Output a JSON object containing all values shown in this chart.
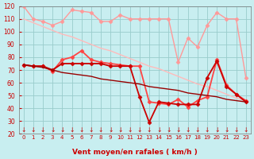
{
  "x": [
    0,
    1,
    2,
    3,
    4,
    5,
    6,
    7,
    8,
    9,
    10,
    11,
    12,
    13,
    14,
    15,
    16,
    17,
    18,
    19,
    20,
    21,
    22,
    23
  ],
  "series": [
    {
      "label": "rafales_with_markers",
      "color": "#ff9999",
      "linewidth": 1.0,
      "marker": "D",
      "markersize": 2.5,
      "values": [
        120,
        110,
        108,
        105,
        108,
        117,
        116,
        115,
        108,
        108,
        113,
        110,
        110,
        110,
        110,
        110,
        76,
        95,
        88,
        105,
        115,
        110,
        110,
        64
      ]
    },
    {
      "label": "rafales_straight",
      "color": "#ffbbbb",
      "linewidth": 1.0,
      "marker": null,
      "markersize": 0,
      "values": [
        110,
        107,
        104,
        101,
        98,
        96,
        93,
        90,
        87,
        85,
        82,
        79,
        76,
        73,
        71,
        68,
        65,
        62,
        59,
        57,
        54,
        51,
        48,
        46
      ]
    },
    {
      "label": "vent_upper",
      "color": "#ff4444",
      "linewidth": 1.3,
      "marker": "D",
      "markersize": 2.5,
      "values": [
        74,
        73,
        73,
        69,
        78,
        80,
        85,
        78,
        76,
        75,
        74,
        73,
        73,
        45,
        44,
        43,
        47,
        41,
        46,
        49,
        78,
        58,
        51,
        46
      ]
    },
    {
      "label": "vent_lower",
      "color": "#cc0000",
      "linewidth": 1.3,
      "marker": "D",
      "markersize": 2.5,
      "values": [
        74,
        73,
        73,
        70,
        75,
        75,
        75,
        75,
        75,
        73,
        73,
        73,
        49,
        29,
        45,
        44,
        43,
        43,
        43,
        64,
        77,
        57,
        51,
        45
      ]
    },
    {
      "label": "vent_straight",
      "color": "#990000",
      "linewidth": 1.0,
      "marker": null,
      "markersize": 0,
      "values": [
        74,
        73,
        72,
        70,
        68,
        67,
        66,
        65,
        63,
        62,
        61,
        60,
        59,
        57,
        56,
        55,
        54,
        52,
        51,
        50,
        49,
        47,
        46,
        45
      ]
    }
  ],
  "xlabel": "Vent moyen/en rafales ( km/h )",
  "xlim": [
    -0.5,
    23.5
  ],
  "ylim": [
    20,
    120
  ],
  "yticks": [
    20,
    30,
    40,
    50,
    60,
    70,
    80,
    90,
    100,
    110,
    120
  ],
  "xticks": [
    0,
    1,
    2,
    3,
    4,
    5,
    6,
    7,
    8,
    9,
    10,
    11,
    12,
    13,
    14,
    15,
    16,
    17,
    18,
    19,
    20,
    21,
    22,
    23
  ],
  "bg_color": "#c8eef0",
  "grid_color": "#99cccc",
  "tick_color": "#cc0000",
  "label_color": "#cc0000"
}
